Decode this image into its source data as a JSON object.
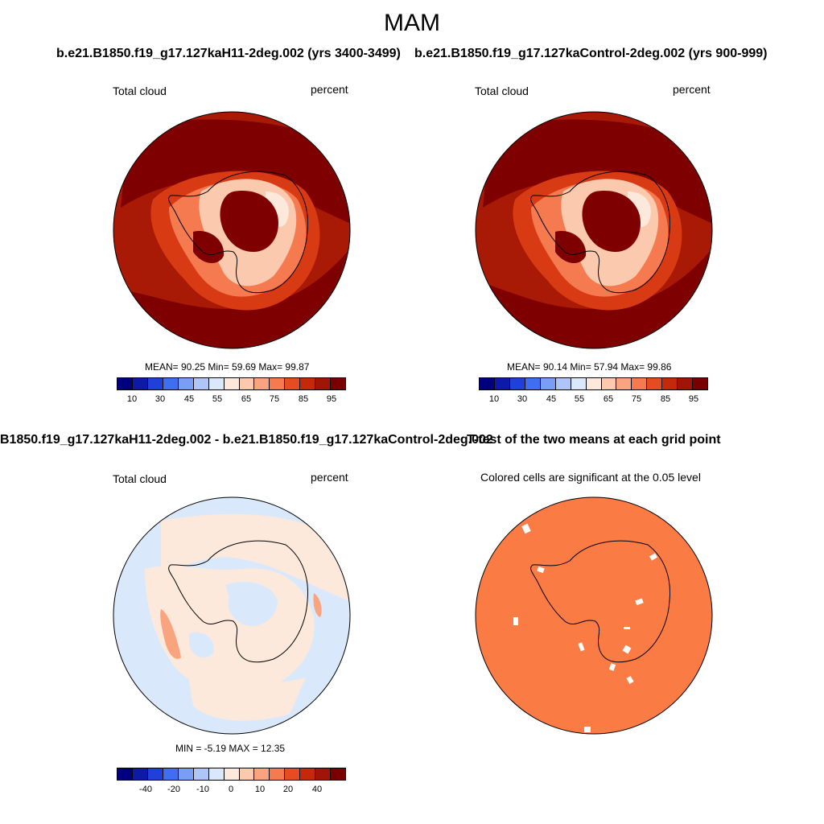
{
  "title": "MAM",
  "panels": {
    "top_left": {
      "header": "b.e21.B1850.f19_g17.127kaH11-2deg.002 (yrs 3400-3499)",
      "left_label": "Total cloud",
      "right_label": "percent",
      "stats": "MEAN=  90.25  Min=  59.69  Max=  99.87"
    },
    "top_right": {
      "header": "b.e21.B1850.f19_g17.127kaControl-2deg.002 (yrs 900-999)",
      "left_label": "Total cloud",
      "right_label": "percent",
      "stats": "MEAN=  90.14  Min=  57.94  Max=  99.86"
    },
    "bottom_left": {
      "header": "B1850.f19_g17.127kaH11-2deg.002 - b.e21.B1850.f19_g17.127kaControl-2deg.002",
      "left_label": "Total cloud",
      "right_label": "percent",
      "stats": "MIN =  -5.19 MAX =  12.35"
    },
    "bottom_right": {
      "header": "T-test of the two means at each grid point",
      "subtitle": "Colored cells are significant at the 0.05 level"
    }
  },
  "colorbar_abs": {
    "colors": [
      "#00007f",
      "#0d1aa8",
      "#1f40d9",
      "#3f6ff0",
      "#7a9ef5",
      "#aec6f7",
      "#d9e9fb",
      "#fde9dc",
      "#fbc9ae",
      "#f9a37f",
      "#f57a50",
      "#e54c22",
      "#c42a0a",
      "#a11506",
      "#7a0000"
    ],
    "ticks": [
      "10",
      "30",
      "45",
      "55",
      "65",
      "75",
      "85",
      "95"
    ]
  },
  "colorbar_diff": {
    "colors": [
      "#00007f",
      "#0d1aa8",
      "#1f40d9",
      "#3f6ff0",
      "#7a9ef5",
      "#aec6f7",
      "#d9e9fb",
      "#fde9dc",
      "#fbc9ae",
      "#f9a37f",
      "#f57a50",
      "#e54c22",
      "#c42a0a",
      "#a11506",
      "#7a0000"
    ],
    "ticks": [
      "-40",
      "-20",
      "-10",
      "0",
      "10",
      "20",
      "40"
    ]
  },
  "map_colors": {
    "abs_outer": "#a81a06",
    "abs_dark": "#7f0000",
    "abs_mid": "#d83a14",
    "abs_light": "#f57a50",
    "abs_pale": "#fbc9ae",
    "abs_palest": "#fde9dc",
    "diff_bg": "#d9e9fb",
    "diff_pos": "#fde9dc",
    "diff_strong": "#f9a37f",
    "ttest_fill": "#fa7b44"
  }
}
